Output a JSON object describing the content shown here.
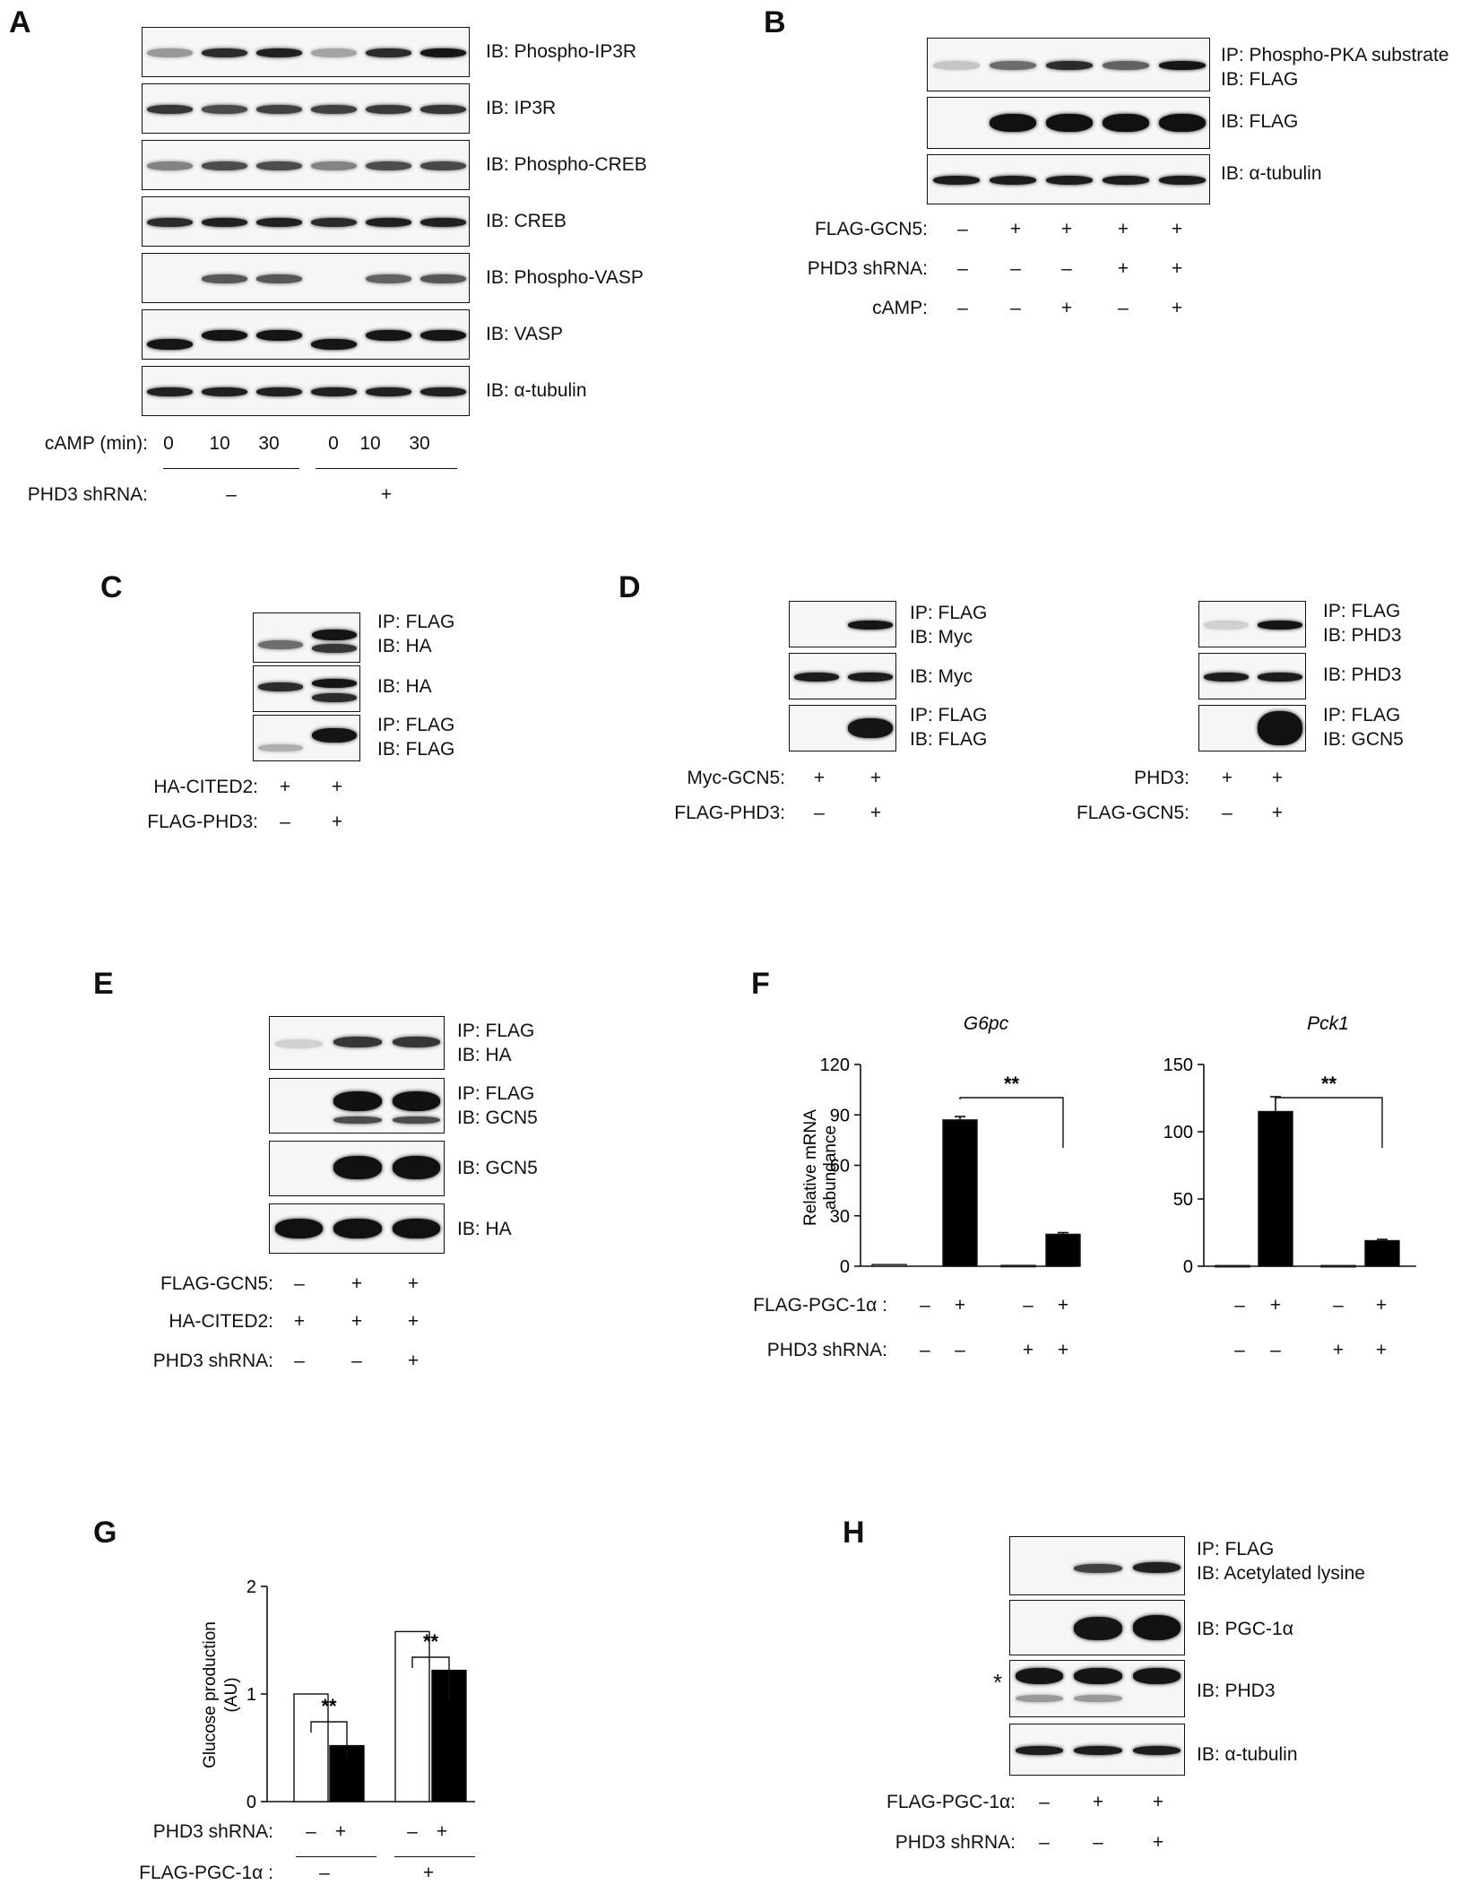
{
  "panels": {
    "A": {
      "letter": "A",
      "blot_labels": [
        "IB: Phospho-IP3R",
        "IB: IP3R",
        "IB: Phospho-CREB",
        "IB: CREB",
        "IB: Phospho-VASP",
        "IB: VASP",
        "IB: α-tubulin"
      ],
      "camp_label": "cAMP (min):",
      "camp_values": [
        "0",
        "10",
        "30",
        "0",
        "10",
        "30"
      ],
      "shrna_label": "PHD3 shRNA:",
      "shrna_values": [
        "–",
        "+"
      ]
    },
    "B": {
      "letter": "B",
      "blot_labels": [
        [
          "IP: Phospho-PKA substrate",
          "IB: FLAG"
        ],
        [
          "IB: FLAG"
        ],
        [
          "IB: α-tubulin"
        ]
      ],
      "conditions": [
        {
          "label": "FLAG-GCN5:",
          "values": [
            "–",
            "+",
            "+",
            "+",
            "+"
          ]
        },
        {
          "label": "PHD3 shRNA:",
          "values": [
            "–",
            "–",
            "–",
            "+",
            "+"
          ]
        },
        {
          "label": "cAMP:",
          "values": [
            "–",
            "–",
            "+",
            "–",
            "+"
          ]
        }
      ]
    },
    "C": {
      "letter": "C",
      "blot_labels": [
        [
          "IP: FLAG",
          "IB: HA"
        ],
        [
          "IB: HA"
        ],
        [
          "IP: FLAG",
          "IB: FLAG"
        ]
      ],
      "conditions": [
        {
          "label": "HA-CITED2:",
          "values": [
            "+",
            "+"
          ]
        },
        {
          "label": "FLAG-PHD3:",
          "values": [
            "–",
            "+"
          ]
        }
      ]
    },
    "D": {
      "letter": "D",
      "left": {
        "blot_labels": [
          [
            "IP: FLAG",
            "IB: Myc"
          ],
          [
            "IB: Myc"
          ],
          [
            "IP: FLAG",
            "IB: FLAG"
          ]
        ],
        "conditions": [
          {
            "label": "Myc-GCN5:",
            "values": [
              "+",
              "+"
            ]
          },
          {
            "label": "FLAG-PHD3:",
            "values": [
              "–",
              "+"
            ]
          }
        ]
      },
      "right": {
        "blot_labels": [
          [
            "IP: FLAG",
            "IB: PHD3"
          ],
          [
            "IB: PHD3"
          ],
          [
            "IP: FLAG",
            "IB: GCN5"
          ]
        ],
        "conditions": [
          {
            "label": "PHD3:",
            "values": [
              "+",
              "+"
            ]
          },
          {
            "label": "FLAG-GCN5:",
            "values": [
              "–",
              "+"
            ]
          }
        ]
      }
    },
    "E": {
      "letter": "E",
      "blot_labels": [
        [
          "IP: FLAG",
          "IB: HA"
        ],
        [
          "IP: FLAG",
          "IB: GCN5"
        ],
        [
          "IB: GCN5"
        ],
        [
          "IB: HA"
        ]
      ],
      "conditions": [
        {
          "label": "FLAG-GCN5:",
          "values": [
            "–",
            "+",
            "+"
          ]
        },
        {
          "label": "HA-CITED2:",
          "values": [
            "+",
            "+",
            "+"
          ]
        },
        {
          "label": "PHD3 shRNA:",
          "values": [
            "–",
            "–",
            "+"
          ]
        }
      ]
    },
    "F": {
      "letter": "F",
      "ylabel_lines": [
        "Relative mRNA",
        "abundance"
      ],
      "conditions": [
        {
          "label": "FLAG-PGC-1α :",
          "values": [
            "–",
            "+",
            "–",
            "+"
          ]
        },
        {
          "label": "PHD3 shRNA:",
          "values": [
            "–",
            "–",
            "+",
            "+"
          ]
        }
      ],
      "significance": "**"
    },
    "G": {
      "letter": "G",
      "ylabel_lines": [
        "Glucose production",
        "(AU)"
      ],
      "shrna_label": "PHD3 shRNA:",
      "shrna_values": [
        "–",
        "+",
        "–",
        "+"
      ],
      "pgc_label": "FLAG-PGC-1α :",
      "pgc_values": [
        "–",
        "+"
      ],
      "significance": "**"
    },
    "H": {
      "letter": "H",
      "blot_labels": [
        [
          "IP: FLAG",
          "IB: Acetylated lysine"
        ],
        [
          "IB: PGC-1α"
        ],
        [
          "IB: PHD3"
        ],
        [
          "IB: α-tubulin"
        ]
      ],
      "asterisk": "*",
      "conditions": [
        {
          "label": "FLAG-PGC-1α:",
          "values": [
            "–",
            "+",
            "+"
          ]
        },
        {
          "label": "PHD3 shRNA:",
          "values": [
            "–",
            "–",
            "+"
          ]
        }
      ]
    }
  },
  "chart_data": [
    {
      "type": "bar",
      "title": "G6pc",
      "ylabel": "Relative mRNA abundance",
      "ylim": [
        0,
        120
      ],
      "yticks": [
        0,
        30,
        60,
        90,
        120
      ],
      "categories": [
        "FLAG-PGC-1α – / PHD3 shRNA –",
        "FLAG-PGC-1α + / PHD3 shRNA –",
        "FLAG-PGC-1α – / PHD3 shRNA +",
        "FLAG-PGC-1α + / PHD3 shRNA +"
      ],
      "values": [
        1,
        87,
        0.5,
        19
      ],
      "errors": [
        0.3,
        2,
        0.2,
        1
      ],
      "colors": [
        "#ffffff",
        "#000000",
        "#ffffff",
        "#000000"
      ],
      "annotation": "**"
    },
    {
      "type": "bar",
      "title": "Pck1",
      "ylim": [
        0,
        150
      ],
      "yticks": [
        0,
        50,
        100,
        150
      ],
      "categories": [
        "FLAG-PGC-1α – / PHD3 shRNA –",
        "FLAG-PGC-1α + / PHD3 shRNA –",
        "FLAG-PGC-1α – / PHD3 shRNA +",
        "FLAG-PGC-1α + / PHD3 shRNA +"
      ],
      "values": [
        0.5,
        115,
        0.5,
        19
      ],
      "errors": [
        0.2,
        11,
        0.2,
        1
      ],
      "colors": [
        "#ffffff",
        "#000000",
        "#ffffff",
        "#000000"
      ],
      "annotation": "**"
    },
    {
      "type": "bar",
      "ylabel": "Glucose production (AU)",
      "ylim": [
        0,
        2
      ],
      "yticks": [
        0,
        1,
        2
      ],
      "categories": [
        "PGC-1α – / shRNA –",
        "PGC-1α – / shRNA +",
        "PGC-1α + / shRNA –",
        "PGC-1α + / shRNA +"
      ],
      "values": [
        1.0,
        0.52,
        1.58,
        1.22
      ],
      "errors": [
        0.01,
        0.01,
        0.0,
        0.02
      ],
      "colors": [
        "#ffffff",
        "#000000",
        "#ffffff",
        "#000000"
      ],
      "annotation": "**"
    }
  ]
}
